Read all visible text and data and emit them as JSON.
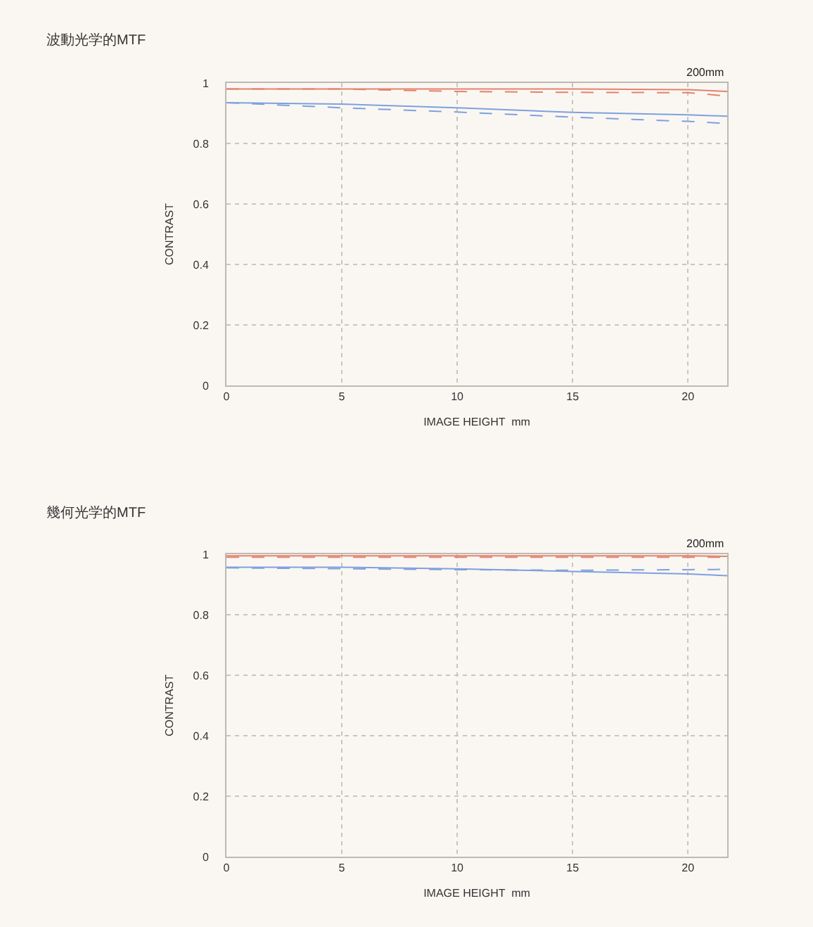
{
  "chart_data": [
    {
      "type": "line",
      "title": "波動光学的MTF",
      "xlabel": "IMAGE HEIGHT  mm",
      "ylabel": "CONTRAST",
      "annotations": [
        "200mm"
      ],
      "x": [
        0,
        5,
        10,
        15,
        20,
        21.7
      ],
      "xlim": [
        0,
        21.7
      ],
      "xticks": [
        0,
        5,
        10,
        15,
        20
      ],
      "ylim": [
        0,
        1
      ],
      "yticks": [
        0,
        0.2,
        0.4,
        0.6,
        0.8,
        1
      ],
      "grid": true,
      "series": [
        {
          "color": "#e4826e",
          "line_style": "solid",
          "values": [
            0.98,
            0.98,
            0.98,
            0.98,
            0.978,
            0.972
          ]
        },
        {
          "color": "#e4826e",
          "line_style": "dashed",
          "values": [
            0.98,
            0.98,
            0.972,
            0.969,
            0.968,
            0.957
          ]
        },
        {
          "color": "#7fa0de",
          "line_style": "solid",
          "values": [
            0.935,
            0.93,
            0.918,
            0.903,
            0.895,
            0.89
          ]
        },
        {
          "color": "#7fa0de",
          "line_style": "dashed",
          "values": [
            0.935,
            0.918,
            0.904,
            0.887,
            0.873,
            0.866
          ]
        }
      ]
    },
    {
      "type": "line",
      "title": "幾何光学的MTF",
      "xlabel": "IMAGE HEIGHT  mm",
      "ylabel": "CONTRAST",
      "annotations": [
        "200mm"
      ],
      "x": [
        0,
        5,
        10,
        15,
        20,
        21.7
      ],
      "xlim": [
        0,
        21.7
      ],
      "xticks": [
        0,
        5,
        10,
        15,
        20
      ],
      "ylim": [
        0,
        1
      ],
      "yticks": [
        0,
        0.2,
        0.4,
        0.6,
        0.8,
        1
      ],
      "grid": true,
      "series": [
        {
          "color": "#e4826e",
          "line_style": "solid",
          "values": [
            0.995,
            0.995,
            0.995,
            0.995,
            0.995,
            0.993
          ]
        },
        {
          "color": "#e4826e",
          "line_style": "dashed",
          "values": [
            0.99,
            0.99,
            0.99,
            0.99,
            0.99,
            0.99
          ]
        },
        {
          "color": "#7fa0de",
          "line_style": "solid",
          "values": [
            0.957,
            0.957,
            0.952,
            0.943,
            0.935,
            0.929
          ]
        },
        {
          "color": "#7fa0de",
          "line_style": "dashed",
          "values": [
            0.955,
            0.952,
            0.949,
            0.947,
            0.949,
            0.95
          ]
        }
      ]
    }
  ]
}
